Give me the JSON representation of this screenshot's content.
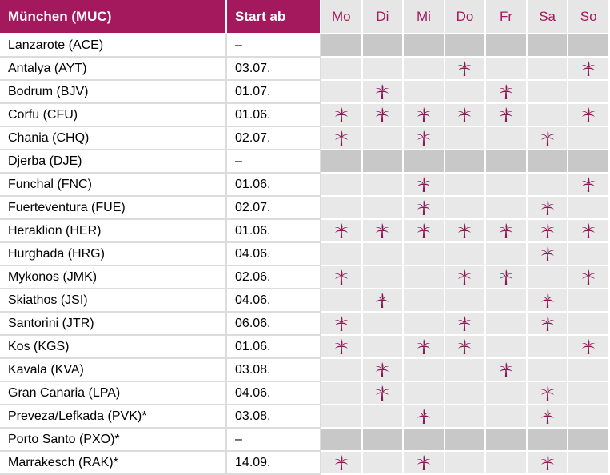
{
  "header": {
    "origin": "München (MUC)",
    "start": "Start ab",
    "days": [
      "Mo",
      "Di",
      "Mi",
      "Do",
      "Fr",
      "Sa",
      "So"
    ]
  },
  "icon": "palm-tree-icon",
  "colors": {
    "accent": "#a4195d",
    "cell": "#e8e8e8",
    "cell_closed": "#c8c8c8"
  },
  "rows": [
    {
      "dest": "Lanzarote (ACE)",
      "start": "–",
      "days": [
        0,
        0,
        0,
        0,
        0,
        0,
        0
      ]
    },
    {
      "dest": "Antalya (AYT)",
      "start": "03.07.",
      "days": [
        0,
        0,
        0,
        1,
        0,
        0,
        1
      ]
    },
    {
      "dest": "Bodrum (BJV)",
      "start": "01.07.",
      "days": [
        0,
        1,
        0,
        0,
        1,
        0,
        0
      ]
    },
    {
      "dest": "Corfu (CFU)",
      "start": "01.06.",
      "days": [
        1,
        1,
        1,
        1,
        1,
        0,
        1
      ]
    },
    {
      "dest": "Chania (CHQ)",
      "start": "02.07.",
      "days": [
        1,
        0,
        1,
        0,
        0,
        1,
        0
      ]
    },
    {
      "dest": "Djerba (DJE)",
      "start": "–",
      "days": [
        0,
        0,
        0,
        0,
        0,
        0,
        0
      ]
    },
    {
      "dest": "Funchal (FNC)",
      "start": "01.06.",
      "days": [
        0,
        0,
        1,
        0,
        0,
        0,
        1
      ]
    },
    {
      "dest": "Fuerteventura (FUE)",
      "start": "02.07.",
      "days": [
        0,
        0,
        1,
        0,
        0,
        1,
        0
      ]
    },
    {
      "dest": "Heraklion (HER)",
      "start": "01.06.",
      "days": [
        1,
        1,
        1,
        1,
        1,
        1,
        1
      ]
    },
    {
      "dest": "Hurghada (HRG)",
      "start": "04.06.",
      "days": [
        0,
        0,
        0,
        0,
        0,
        1,
        0
      ]
    },
    {
      "dest": "Mykonos (JMK)",
      "start": "02.06.",
      "days": [
        1,
        0,
        0,
        1,
        1,
        0,
        1
      ]
    },
    {
      "dest": "Skiathos (JSI)",
      "start": "04.06.",
      "days": [
        0,
        1,
        0,
        0,
        0,
        1,
        0
      ]
    },
    {
      "dest": "Santorini (JTR)",
      "start": "06.06.",
      "days": [
        1,
        0,
        0,
        1,
        0,
        1,
        0
      ]
    },
    {
      "dest": "Kos (KGS)",
      "start": "01.06.",
      "days": [
        1,
        0,
        1,
        1,
        0,
        0,
        1
      ]
    },
    {
      "dest": "Kavala (KVA)",
      "start": "03.08.",
      "days": [
        0,
        1,
        0,
        0,
        1,
        0,
        0
      ]
    },
    {
      "dest": "Gran Canaria (LPA)",
      "start": "04.06.",
      "days": [
        0,
        1,
        0,
        0,
        0,
        1,
        0
      ]
    },
    {
      "dest": "Preveza/Lefkada (PVK)*",
      "start": "03.08.",
      "days": [
        0,
        0,
        1,
        0,
        0,
        1,
        0
      ]
    },
    {
      "dest": "Porto Santo (PXO)*",
      "start": "–",
      "days": [
        0,
        0,
        0,
        0,
        0,
        0,
        0
      ]
    },
    {
      "dest": "Marrakesch (RAK)*",
      "start": "14.09.",
      "days": [
        1,
        0,
        1,
        0,
        0,
        1,
        0
      ]
    }
  ]
}
